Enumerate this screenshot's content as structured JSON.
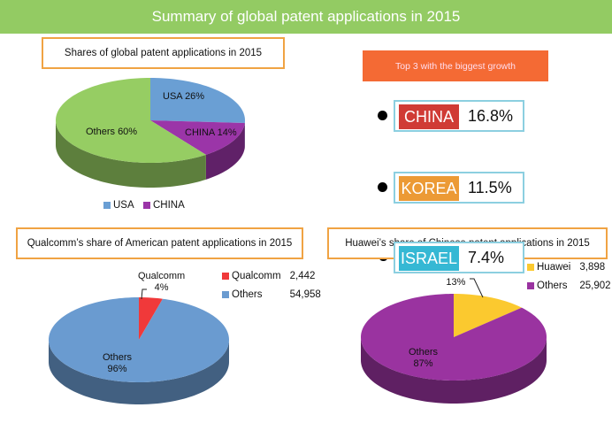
{
  "header": {
    "title": "Summary of global patent applications in 2015"
  },
  "growth": {
    "title": "Top 3 with the biggest growth",
    "items": [
      {
        "country": "CHINA",
        "value": "16.8%",
        "color": "#d03b35"
      },
      {
        "country": "KOREA",
        "value": "11.5%",
        "color": "#ec9a35"
      },
      {
        "country": "ISRAEL",
        "value": "7.4%",
        "color": "#35b8d4"
      }
    ]
  },
  "chart_data": [
    {
      "type": "pie",
      "title": "Shares of global patent applications in 2015",
      "slices": [
        {
          "label": "USA",
          "value": 26,
          "display": "USA 26%",
          "color": "#6a9fd4"
        },
        {
          "label": "CHINA",
          "value": 14,
          "display": "CHINA 14%",
          "color": "#9b35a8"
        },
        {
          "label": "Others",
          "value": 60,
          "display": "Others 60%",
          "color": "#96cd63"
        }
      ],
      "legend": [
        "USA",
        "CHINA"
      ],
      "legend_position": "bottom"
    },
    {
      "type": "pie",
      "title": "Qualcomm’s share of American patent applications in 2015",
      "slices": [
        {
          "label": "Qualcomm",
          "value": 2442,
          "percent": "4%",
          "color": "#f0393a"
        },
        {
          "label": "Others",
          "value": 54958,
          "percent": "96%",
          "color": "#6a9bd0"
        }
      ],
      "legend_values": [
        "2,442",
        "54,958"
      ],
      "legend_position": "top-right"
    },
    {
      "type": "pie",
      "title": "Huawei’s share of Chinese patent applications in 2015",
      "slices": [
        {
          "label": "Huawei",
          "value": 3898,
          "percent": "13%",
          "color": "#fbc92f"
        },
        {
          "label": "Others",
          "value": 25902,
          "percent": "87%",
          "color": "#9a33a0"
        }
      ],
      "legend_values": [
        "3,898",
        "25,902"
      ],
      "legend_position": "top-right"
    }
  ]
}
